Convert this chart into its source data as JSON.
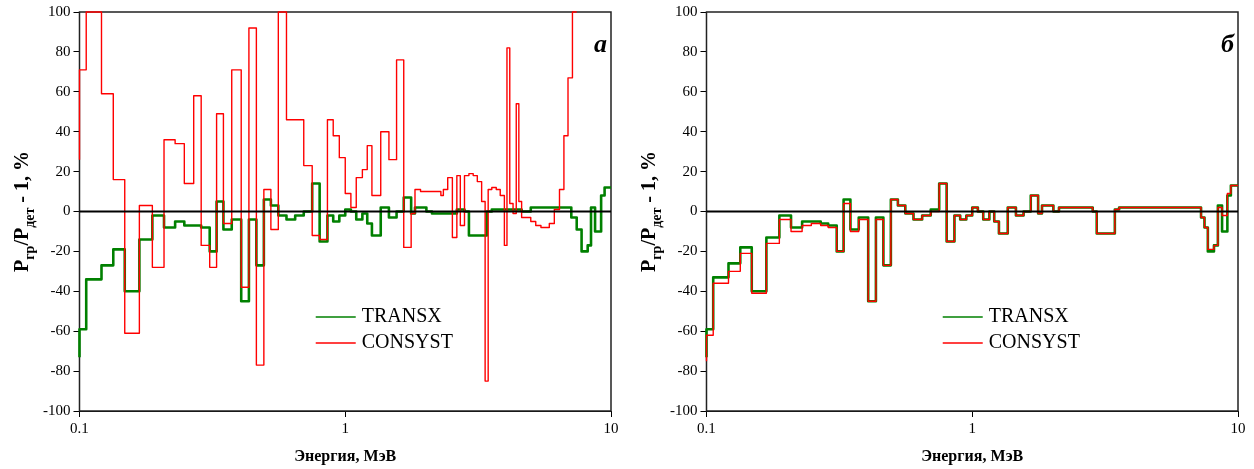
{
  "chart_data": [
    {
      "type": "step",
      "xlabel": "Энергия, МэВ",
      "ylabel": "P$_{гр}$/P$_{дет}$ - 1, %",
      "log": "x",
      "xlim": [
        0.1,
        10
      ],
      "xticks": [
        0.1,
        1,
        10
      ],
      "ylim": [
        -100,
        100
      ],
      "yticks": [
        -100,
        -80,
        -60,
        -40,
        -20,
        0,
        20,
        40,
        60,
        80,
        100
      ],
      "legend": "bottom right",
      "annotations": [
        "a"
      ],
      "ref_lines": [
        {
          "axis": "y",
          "value": 0,
          "color": "#000000"
        }
      ],
      "series": [
        {
          "name": "TRANSX",
          "color": "#008000",
          "x": [
            0.1,
            0.106,
            0.121,
            0.134,
            0.148,
            0.168,
            0.188,
            0.208,
            0.229,
            0.248,
            0.287,
            0.309,
            0.328,
            0.348,
            0.374,
            0.406,
            0.434,
            0.463,
            0.494,
            0.525,
            0.56,
            0.601,
            0.648,
            0.698,
            0.751,
            0.801,
            0.857,
            0.901,
            0.95,
            1.0,
            1.05,
            1.1,
            1.16,
            1.21,
            1.26,
            1.36,
            1.46,
            1.56,
            1.66,
            1.77,
            1.83,
            2.02,
            2.12,
            2.63,
            2.81,
            2.92,
            3.41,
            3.56,
            4.61,
            4.99,
            7.09,
            7.43,
            7.75,
            8.17,
            8.41,
            8.71,
            9.18,
            9.46,
            9.71,
            10
          ],
          "values": [
            -73,
            -59,
            -34,
            -27,
            -19,
            -40,
            -14,
            -2,
            -8,
            -5,
            -7,
            -8,
            -20,
            5,
            -9,
            -4,
            -45,
            -4,
            -27,
            6,
            3,
            -2,
            -4,
            -2,
            0,
            14,
            -15,
            -2,
            -5,
            -2,
            1,
            0,
            -4,
            -1,
            -6,
            -12,
            2,
            -3,
            0,
            7,
            -1,
            2,
            0,
            -1,
            1,
            0,
            -12,
            0,
            1,
            0,
            2,
            -3,
            -9,
            -20,
            -17,
            2,
            -10,
            8,
            12,
            12
          ]
        },
        {
          "name": "CONSYST",
          "color": "#ff0000",
          "x": [
            0.1,
            0.106,
            0.121,
            0.134,
            0.148,
            0.168,
            0.188,
            0.208,
            0.229,
            0.248,
            0.269,
            0.287,
            0.309,
            0.328,
            0.348,
            0.374,
            0.406,
            0.434,
            0.463,
            0.494,
            0.525,
            0.56,
            0.601,
            0.698,
            0.751,
            0.801,
            0.857,
            0.901,
            0.95,
            1.0,
            1.05,
            1.1,
            1.16,
            1.21,
            1.26,
            1.36,
            1.46,
            1.56,
            1.66,
            1.77,
            1.83,
            1.92,
            2.29,
            2.34,
            2.43,
            2.53,
            2.63,
            2.71,
            2.81,
            2.92,
            3.03,
            3.14,
            3.26,
            3.36,
            3.45,
            3.56,
            3.7,
            3.83,
            3.97,
            4.06,
            4.16,
            4.28,
            4.4,
            4.5,
            4.61,
            4.99,
            5.21,
            5.45,
            5.64,
            5.86,
            6.12,
            6.4,
            6.65,
            6.89,
            7.16,
            7.43
          ],
          "values": [
            26,
            71,
            100,
            59,
            16,
            -61,
            3,
            -28,
            36,
            34,
            14,
            58,
            -17,
            -28,
            49,
            -6,
            71,
            -38,
            92,
            -77,
            11,
            -9,
            100,
            46,
            23,
            -12,
            -14,
            46,
            38,
            27,
            9,
            2,
            17,
            21,
            33,
            8,
            40,
            26,
            76,
            -18,
            -1,
            11,
            10,
            8,
            11,
            17,
            -13,
            18,
            -7,
            18,
            19,
            18,
            15,
            5,
            -85,
            11,
            12,
            11,
            8,
            -17,
            82,
            4,
            -1,
            54,
            5,
            -3,
            -5,
            -7,
            -8,
            -8,
            -6,
            1,
            11,
            38,
            67,
            100
          ]
        }
      ]
    },
    {
      "type": "step",
      "xlabel": "Энергия, МэВ",
      "ylabel": "P$_{гр}$/P$_{дет}$ - 1, %",
      "log": "x",
      "xlim": [
        0.1,
        10
      ],
      "xticks": [
        0.1,
        1,
        10
      ],
      "ylim": [
        -100,
        100
      ],
      "yticks": [
        -100,
        -80,
        -60,
        -40,
        -20,
        0,
        20,
        40,
        60,
        80,
        100
      ],
      "legend": "bottom right",
      "annotations": [
        "б"
      ],
      "ref_lines": [
        {
          "axis": "y",
          "value": 0,
          "color": "#000000"
        }
      ],
      "series": [
        {
          "name": "TRANSX",
          "color": "#008000",
          "x": [
            0.1,
            0.106,
            0.121,
            0.134,
            0.148,
            0.168,
            0.188,
            0.208,
            0.229,
            0.248,
            0.269,
            0.287,
            0.309,
            0.328,
            0.348,
            0.374,
            0.406,
            0.434,
            0.463,
            0.494,
            0.525,
            0.56,
            0.601,
            0.648,
            0.698,
            0.751,
            0.801,
            0.857,
            0.901,
            0.95,
            1.0,
            1.05,
            1.1,
            1.16,
            1.21,
            1.26,
            1.36,
            1.46,
            1.56,
            1.66,
            1.77,
            1.83,
            2.02,
            2.12,
            2.84,
            2.94,
            3.44,
            3.57,
            7.26,
            7.48,
            7.7,
            8.12,
            8.4,
            8.71,
            9.12,
            9.4,
            9.65,
            10
          ],
          "values": [
            -73,
            -59,
            -33,
            -26,
            -18,
            -40,
            -13,
            -2,
            -8,
            -5,
            -5,
            -6,
            -7,
            -20,
            6,
            -9,
            -3,
            -45,
            -3,
            -27,
            6,
            3,
            -1,
            -4,
            -2,
            1,
            14,
            -15,
            -2,
            -4,
            -2,
            2,
            0,
            -4,
            0,
            -5,
            -11,
            2,
            -2,
            0,
            8,
            -1,
            3,
            0,
            2,
            0,
            -11,
            1,
            2,
            -3,
            -8,
            -20,
            -17,
            3,
            -10,
            8,
            13,
            13
          ]
        },
        {
          "name": "CONSYST",
          "color": "#ff0000",
          "x": [
            0.1,
            0.106,
            0.121,
            0.134,
            0.148,
            0.168,
            0.188,
            0.208,
            0.229,
            0.248,
            0.269,
            0.287,
            0.309,
            0.328,
            0.348,
            0.374,
            0.406,
            0.434,
            0.463,
            0.494,
            0.525,
            0.56,
            0.601,
            0.648,
            0.698,
            0.751,
            0.801,
            0.857,
            0.901,
            0.95,
            1.0,
            1.05,
            1.1,
            1.16,
            1.21,
            1.26,
            1.36,
            1.46,
            1.56,
            1.66,
            1.77,
            1.83,
            2.02,
            2.12,
            2.84,
            2.94,
            3.44,
            3.57,
            7.26,
            7.48,
            7.7,
            8.12,
            8.4,
            8.71,
            9.12,
            9.4,
            9.65,
            10
          ],
          "values": [
            -75,
            -62,
            -36,
            -30,
            -21,
            -41,
            -16,
            -4,
            -10,
            -7,
            -6,
            -7,
            -8,
            -20,
            4,
            -10,
            -4,
            -45,
            -4,
            -27,
            6,
            3,
            -1,
            -4,
            -2,
            0,
            14,
            -15,
            -2,
            -4,
            -2,
            2,
            0,
            -4,
            0,
            -5,
            -11,
            2,
            -2,
            0,
            8,
            -1,
            3,
            0,
            2,
            0,
            -11,
            1,
            2,
            -3,
            -8,
            -19,
            -17,
            2,
            -2,
            9,
            13,
            13
          ]
        }
      ]
    }
  ]
}
